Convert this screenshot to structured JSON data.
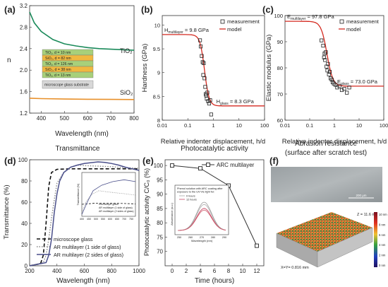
{
  "panels": {
    "a": {
      "label": "(a)",
      "chart_data": {
        "type": "line",
        "xlabel": "Wavelength (nm)",
        "ylabel": "n",
        "xlim": [
          350,
          800
        ],
        "ylim": [
          1.2,
          3.2
        ],
        "xticks": [
          "400",
          "500",
          "600",
          "700",
          "800"
        ],
        "yticks": [
          "1.2",
          "1.6",
          "2.0",
          "2.4",
          "2.8",
          "3.2"
        ],
        "series": [
          {
            "name": "TiO2",
            "color": "#1a8a5a",
            "x": [
              350,
              370,
              400,
              450,
              500,
              550,
              600,
              650,
              700,
              750,
              800
            ],
            "y": [
              3.08,
              2.88,
              2.72,
              2.57,
              2.49,
              2.45,
              2.42,
              2.4,
              2.39,
              2.38,
              2.37
            ]
          },
          {
            "name": "SiO2",
            "color": "#e8902a",
            "x": [
              350,
              400,
              500,
              600,
              700,
              800
            ],
            "y": [
              1.478,
              1.47,
              1.462,
              1.458,
              1.455,
              1.453
            ]
          }
        ],
        "curve_labels": [
          "TiO₂",
          "SiO₂"
        ],
        "stack_layers": [
          {
            "text": "TiO₂, d = 10 nm",
            "material": "TiO2"
          },
          {
            "text": "SiO₂, d = 82 nm",
            "material": "SiO2"
          },
          {
            "text": "TiO₂, d = 126 nm",
            "material": "TiO2"
          },
          {
            "text": "SiO₂, d = 38 nm",
            "material": "SiO2"
          },
          {
            "text": "TiO₂, d = 13 nm",
            "material": "TiO2"
          }
        ],
        "substrate": "microscope glass substrate"
      }
    },
    "b": {
      "label": "(b)",
      "chart_data": {
        "type": "scatter",
        "xlabel": "Relative indenter displacement, h/d",
        "ylabel": "Hardness (GPa)",
        "xscale": "log",
        "xlim": [
          0.01,
          100
        ],
        "ylim": [
          8,
          10.2
        ],
        "xticks": [
          "0.01",
          "0.1",
          "1",
          "10",
          "100"
        ],
        "yticks": [
          "8",
          "8.5",
          "9",
          "9.5",
          "10"
        ],
        "annotation_top": "H",
        "annotation_top_sub": "multilayer",
        "annotation_top_val": " = 9.8 GPa",
        "annotation_bottom": "H",
        "annotation_bottom_sub": "glass",
        "annotation_bottom_val": " = 8.3 GPa",
        "legend": [
          "measurement",
          "model"
        ],
        "points": [
          {
            "x": 0.3,
            "y": 9.68
          },
          {
            "x": 0.32,
            "y": 9.55
          },
          {
            "x": 0.35,
            "y": 9.35
          },
          {
            "x": 0.38,
            "y": 9.22
          },
          {
            "x": 0.4,
            "y": 8.95
          },
          {
            "x": 0.42,
            "y": 9.2
          },
          {
            "x": 0.45,
            "y": 8.88
          },
          {
            "x": 0.48,
            "y": 8.7
          },
          {
            "x": 0.5,
            "y": 8.55
          },
          {
            "x": 0.52,
            "y": 8.52
          },
          {
            "x": 0.55,
            "y": 8.45
          },
          {
            "x": 0.58,
            "y": 8.58
          },
          {
            "x": 0.62,
            "y": 8.4
          },
          {
            "x": 0.68,
            "y": 8.35
          },
          {
            "x": 0.75,
            "y": 8.42
          },
          {
            "x": 0.82,
            "y": 8.12
          }
        ],
        "model": {
          "top": 9.8,
          "bottom": 8.3,
          "center": 0.45,
          "width": 0.09
        }
      }
    },
    "c": {
      "label": "(c)",
      "chart_data": {
        "type": "scatter",
        "xlabel": "Relative indenter displacement, h/d",
        "ylabel": "Elastic modulus (GPa)",
        "xscale": "log",
        "xlim": [
          0.01,
          100
        ],
        "ylim": [
          60,
          100
        ],
        "xticks": [
          "0.01",
          "0.1",
          "1",
          "10",
          "100"
        ],
        "yticks": [
          "60",
          "70",
          "80",
          "90",
          "100"
        ],
        "annotation_top": "E",
        "annotation_top_sub": "multilayer",
        "annotation_top_val": " = 97.8 GPa",
        "annotation_bottom": "E",
        "annotation_bottom_sub": "glass",
        "annotation_bottom_val": " = 73.0 GPa",
        "legend": [
          "measurement",
          "model"
        ],
        "points": [
          {
            "x": 0.3,
            "y": 90.5
          },
          {
            "x": 0.35,
            "y": 88.5
          },
          {
            "x": 0.38,
            "y": 84.0
          },
          {
            "x": 0.4,
            "y": 85.5
          },
          {
            "x": 0.42,
            "y": 83.0
          },
          {
            "x": 0.45,
            "y": 86.0
          },
          {
            "x": 0.48,
            "y": 80.5
          },
          {
            "x": 0.52,
            "y": 79.0
          },
          {
            "x": 0.55,
            "y": 81.5
          },
          {
            "x": 0.6,
            "y": 77.5
          },
          {
            "x": 0.65,
            "y": 78.5
          },
          {
            "x": 0.7,
            "y": 76.0
          },
          {
            "x": 0.78,
            "y": 75.5
          },
          {
            "x": 0.85,
            "y": 74.5
          },
          {
            "x": 0.95,
            "y": 74.0
          },
          {
            "x": 1.1,
            "y": 73.5
          },
          {
            "x": 1.3,
            "y": 72.5
          },
          {
            "x": 1.6,
            "y": 73.0
          },
          {
            "x": 2.0,
            "y": 71.5
          },
          {
            "x": 2.5,
            "y": 72.0
          },
          {
            "x": 3.2,
            "y": 70.5
          },
          {
            "x": 4.0,
            "y": 72.5
          }
        ],
        "model": {
          "top": 97.8,
          "bottom": 73.0,
          "center": 0.5,
          "width": 0.12
        }
      }
    },
    "d": {
      "label": "(d)",
      "heading": "Transmittance",
      "chart_data": {
        "type": "line",
        "xlabel": "Wavelength (nm)",
        "ylabel": "Transmittance (%)",
        "xlim": [
          200,
          1000
        ],
        "ylim": [
          0,
          100
        ],
        "xticks": [
          "200",
          "400",
          "600",
          "800",
          "1000"
        ],
        "yticks": [
          "0",
          "20",
          "40",
          "60",
          "80",
          "100"
        ],
        "series": [
          {
            "name": "microscope glass",
            "style": "dashed-black",
            "x": [
              200,
              280,
              300,
              320,
              340,
              360,
              400,
              500,
              600,
              800,
              1000
            ],
            "y": [
              0,
              2,
              10,
              40,
              75,
              88,
              91,
              91.5,
              91.5,
              91.5,
              91.5
            ]
          },
          {
            "name": "AR multilayer (1 side of glass)",
            "style": "dotted-gray",
            "x": [
              200,
              300,
              320,
              340,
              360,
              380,
              400,
              450,
              500,
              550,
              600,
              700,
              800,
              900,
              1000
            ],
            "y": [
              0,
              3,
              10,
              25,
              45,
              62,
              78,
              88,
              93,
              95,
              94.5,
              94,
              93.5,
              92.5,
              92
            ]
          },
          {
            "name": "AR multilayer (2 sides of glass)",
            "style": "solid-blue",
            "x": [
              200,
              320,
              340,
              360,
              380,
              400,
              420,
              450,
              500,
              550,
              600,
              700,
              750,
              800,
              850,
              900,
              950,
              1000
            ],
            "y": [
              0,
              3,
              10,
              25,
              50,
              68,
              80,
              88,
              93,
              95,
              96.5,
              98,
              97.5,
              96.5,
              95,
              93,
              91.5,
              90
            ]
          }
        ],
        "inset": {
          "xlim": [
            400,
            780
          ],
          "ylim": [
            88,
            100
          ],
          "xticks": [
            "400",
            "450",
            "500",
            "550",
            "600",
            "650",
            "700",
            "750"
          ],
          "ylabel": "Transmittance (%)",
          "legend": [
            "microscope glass",
            "AR multilayer (1 side of glass)",
            "AR multilayer (2 sides of glass)"
          ]
        }
      }
    },
    "e": {
      "label": "(e)",
      "heading": "Photocatalytic activity",
      "chart_data": {
        "type": "line",
        "xlabel": "Time (hours)",
        "ylabel": "Photocatalytic activity  C/C₀ (%)",
        "xlim": [
          -1,
          13
        ],
        "ylim": [
          65,
          102
        ],
        "xticks": [
          "0",
          "2",
          "4",
          "6",
          "8",
          "10",
          "12"
        ],
        "yticks": [
          "70",
          "75",
          "80",
          "85",
          "90",
          "95",
          "100"
        ],
        "series": [
          {
            "name": "ARC multilayer",
            "x": [
              0,
              4,
              8,
              12
            ],
            "y": [
              100,
              99,
              93,
              72
            ]
          }
        ],
        "inset": {
          "title_lines": [
            "Phenol solution with ARC coating after",
            "exposure to the UV-Vis light for:"
          ],
          "legend": [
            "0 hours",
            "12 hours"
          ],
          "xlabel": "Wavelength (nm)",
          "ylabel": "Absorbance (a.u.)",
          "xticks": [
            "250",
            "260",
            "270",
            "280",
            "290"
          ]
        }
      }
    },
    "f": {
      "label": "(f)",
      "heading_lines": [
        "Abrasion resistance",
        "(surface after scratch test)"
      ],
      "scale_text": "200 µm",
      "z_text": "Z = 11.6 nm",
      "xy_text": "X=Y= 0.816 mm",
      "colorbar_ticks": [
        "10 nm",
        "8 nm",
        "6 nm",
        "4 nm",
        "2 nm",
        "0 nm"
      ]
    }
  }
}
